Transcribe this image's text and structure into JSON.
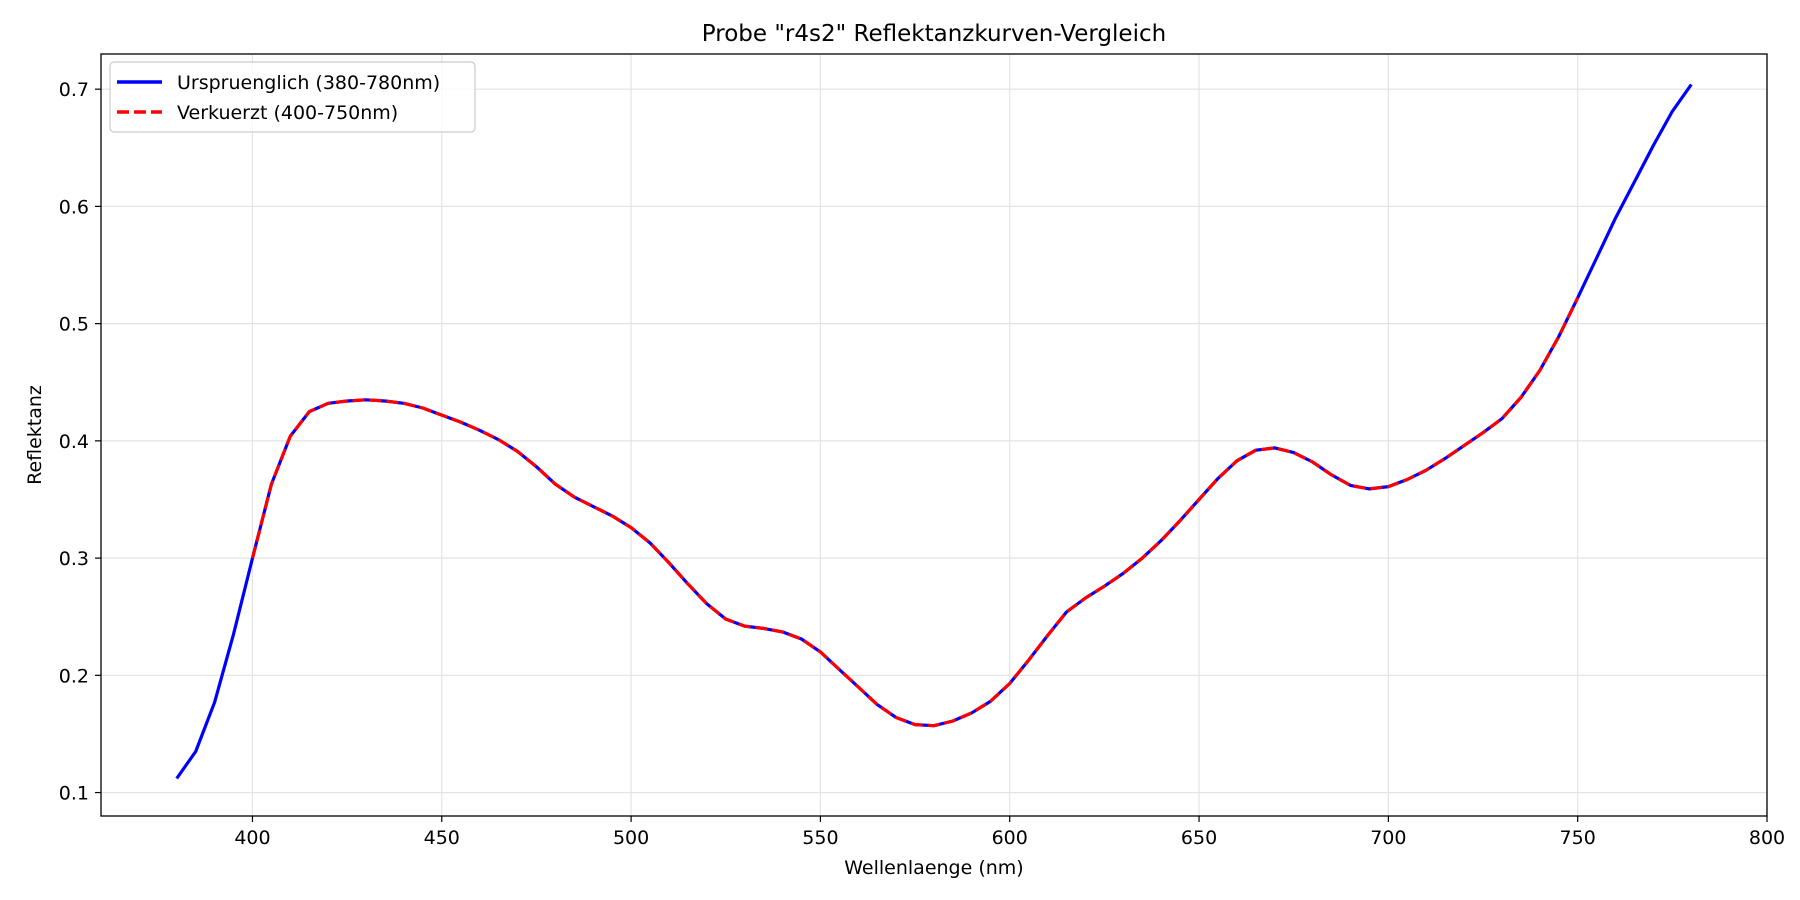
{
  "chart_data": {
    "type": "line",
    "title": "Probe \"r4s2\" Reflektanzkurven-Vergleich",
    "xlabel": "Wellenlaenge (nm)",
    "ylabel": "Reflektanz",
    "xlim": [
      360,
      800
    ],
    "ylim": [
      0.08,
      0.73
    ],
    "xticks": [
      400,
      450,
      500,
      550,
      600,
      650,
      700,
      750,
      800
    ],
    "yticks": [
      0.1,
      0.2,
      0.3,
      0.4,
      0.5,
      0.6,
      0.7
    ],
    "grid": true,
    "legend_position": "top-left",
    "x": [
      380,
      385,
      390,
      395,
      400,
      405,
      410,
      415,
      420,
      425,
      430,
      435,
      440,
      445,
      450,
      455,
      460,
      465,
      470,
      475,
      480,
      485,
      490,
      495,
      500,
      505,
      510,
      515,
      520,
      525,
      530,
      535,
      540,
      545,
      550,
      555,
      560,
      565,
      570,
      575,
      580,
      585,
      590,
      595,
      600,
      605,
      610,
      615,
      620,
      625,
      630,
      635,
      640,
      645,
      650,
      655,
      660,
      665,
      670,
      675,
      680,
      685,
      690,
      695,
      700,
      705,
      710,
      715,
      720,
      725,
      730,
      735,
      740,
      745,
      750,
      755,
      760,
      765,
      770,
      775,
      780
    ],
    "series": [
      {
        "name": "Urspruenglich (380-780nm)",
        "color": "#0000ff",
        "style": "solid",
        "x_range": [
          380,
          780
        ],
        "values": [
          0.112,
          0.135,
          0.177,
          0.235,
          0.3,
          0.363,
          0.404,
          0.425,
          0.432,
          0.434,
          0.435,
          0.434,
          0.432,
          0.428,
          0.422,
          0.416,
          0.409,
          0.401,
          0.391,
          0.378,
          0.363,
          0.352,
          0.344,
          0.336,
          0.326,
          0.313,
          0.296,
          0.278,
          0.261,
          0.248,
          0.242,
          0.24,
          0.237,
          0.231,
          0.22,
          0.205,
          0.19,
          0.175,
          0.164,
          0.158,
          0.157,
          0.161,
          0.168,
          0.178,
          0.193,
          0.213,
          0.234,
          0.254,
          0.266,
          0.276,
          0.287,
          0.3,
          0.315,
          0.332,
          0.35,
          0.368,
          0.383,
          0.392,
          0.394,
          0.39,
          0.382,
          0.371,
          0.362,
          0.359,
          0.361,
          0.367,
          0.375,
          0.385,
          0.396,
          0.407,
          0.419,
          0.437,
          0.46,
          0.489,
          0.522,
          0.556,
          0.59,
          0.621,
          0.652,
          0.681,
          0.704
        ]
      },
      {
        "name": "Verkuerzt (400-750nm)",
        "color": "#ff0000",
        "style": "dashed",
        "x_range": [
          400,
          750
        ],
        "values": [
          0.112,
          0.135,
          0.177,
          0.235,
          0.3,
          0.363,
          0.404,
          0.425,
          0.432,
          0.434,
          0.435,
          0.434,
          0.432,
          0.428,
          0.422,
          0.416,
          0.409,
          0.401,
          0.391,
          0.378,
          0.363,
          0.352,
          0.344,
          0.336,
          0.326,
          0.313,
          0.296,
          0.278,
          0.261,
          0.248,
          0.242,
          0.24,
          0.237,
          0.231,
          0.22,
          0.205,
          0.19,
          0.175,
          0.164,
          0.158,
          0.157,
          0.161,
          0.168,
          0.178,
          0.193,
          0.213,
          0.234,
          0.254,
          0.266,
          0.276,
          0.287,
          0.3,
          0.315,
          0.332,
          0.35,
          0.368,
          0.383,
          0.392,
          0.394,
          0.39,
          0.382,
          0.371,
          0.362,
          0.359,
          0.361,
          0.367,
          0.375,
          0.385,
          0.396,
          0.407,
          0.419,
          0.437,
          0.46,
          0.489,
          0.522,
          0.556,
          0.59,
          0.621,
          0.652,
          0.681,
          0.704
        ]
      }
    ]
  }
}
